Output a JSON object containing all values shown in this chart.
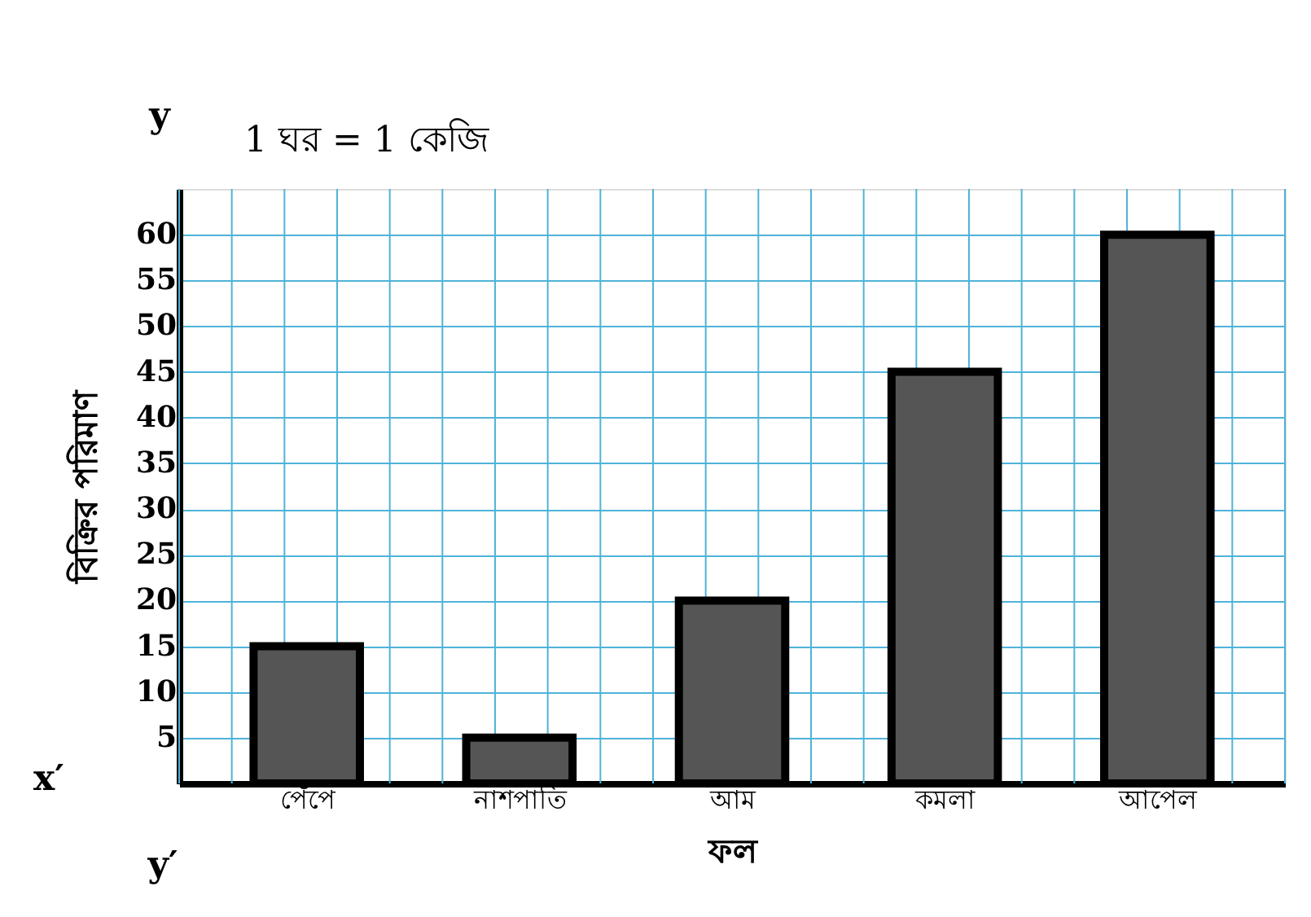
{
  "chart_data": {
    "type": "bar",
    "categories": [
      "পেঁপে",
      "নাশপাতি",
      "আম",
      "কমলা",
      "আপেল"
    ],
    "values": [
      15,
      5,
      20,
      45,
      60
    ],
    "color": "#555555",
    "xlabel": "ফল",
    "ylabel": "বিক্রির পরিমাণ",
    "ylim": [
      0,
      65
    ],
    "yticks": [
      5,
      10,
      15,
      20,
      25,
      30,
      35,
      40,
      45,
      50,
      55,
      60
    ],
    "grid": true,
    "annotations": [
      "1 ঘর = 1 কেজি",
      "y",
      "x′",
      "y′"
    ]
  }
}
